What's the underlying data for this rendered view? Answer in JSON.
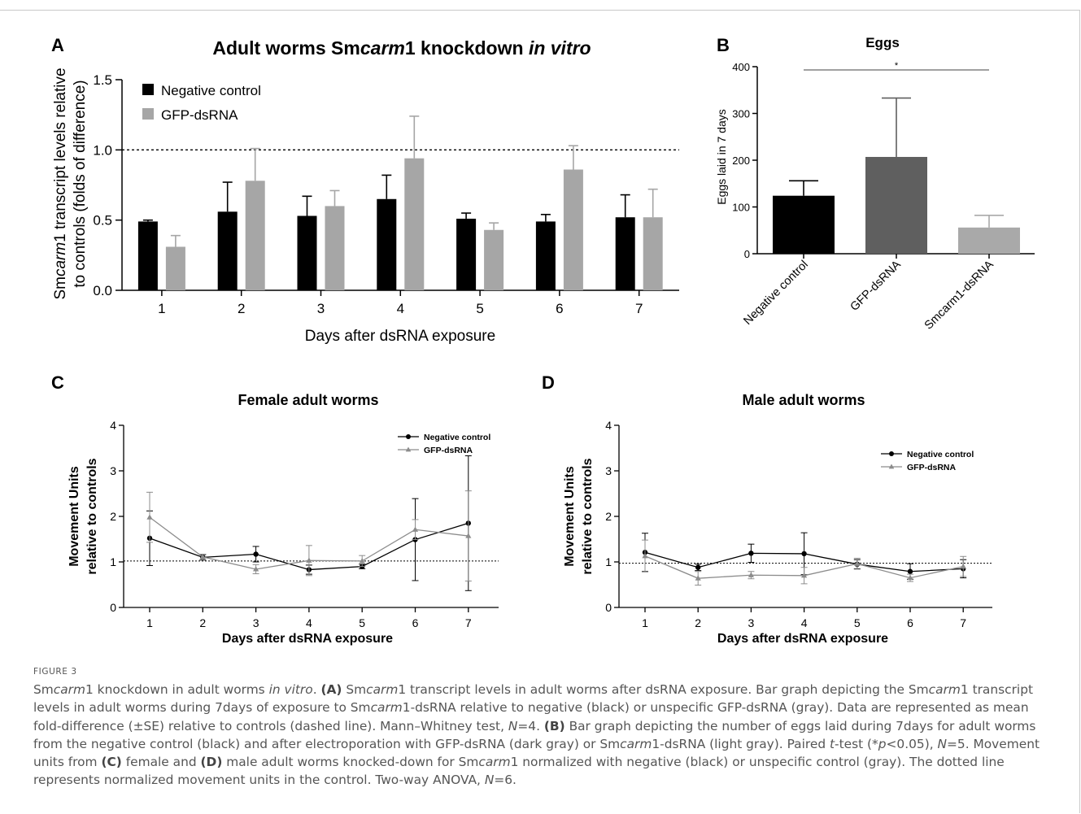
{
  "chart_data": [
    {
      "panel": "A",
      "type": "bar",
      "title_parts": [
        {
          "t": "Adult worms Sm",
          "i": false
        },
        {
          "t": "carm",
          "i": true
        },
        {
          "t": "1 knockdown ",
          "i": false
        },
        {
          "t": "in vitro",
          "i": true
        }
      ],
      "xlabel": "Days after dsRNA exposure",
      "ylabel_line1_parts": [
        {
          "t": "Sm",
          "i": false
        },
        {
          "t": "carm",
          "i": true
        },
        {
          "t": "1 transcript levels relative",
          "i": false
        }
      ],
      "ylabel_line2": "to controls (folds of difference)",
      "categories": [
        "1",
        "2",
        "3",
        "4",
        "5",
        "6",
        "7"
      ],
      "ylim": [
        0,
        1.5
      ],
      "yticks": [
        "0.0",
        "0.5",
        "1.0",
        "1.5"
      ],
      "reference_line": 1.0,
      "legend_position": "top-left",
      "series": [
        {
          "name": "Negative control",
          "color": "#000000",
          "values": [
            0.49,
            0.56,
            0.53,
            0.65,
            0.51,
            0.49,
            0.52
          ],
          "errors": [
            0.01,
            0.21,
            0.14,
            0.17,
            0.04,
            0.05,
            0.16
          ]
        },
        {
          "name": "GFP-dsRNA",
          "color": "#a6a6a6",
          "values": [
            0.31,
            0.78,
            0.6,
            0.94,
            0.43,
            0.86,
            0.52
          ],
          "errors": [
            0.08,
            0.23,
            0.11,
            0.3,
            0.05,
            0.17,
            0.2
          ]
        }
      ]
    },
    {
      "panel": "B",
      "type": "bar",
      "title": "Eggs",
      "ylabel": "Eggs laid in 7 days",
      "categories": [
        "Negative control",
        "GFP-dsRNA",
        "Smcarm1-dsRNA"
      ],
      "values": [
        124,
        207,
        56
      ],
      "errors": [
        32,
        126,
        26
      ],
      "colors": [
        "#000000",
        "#5f5f5f",
        "#a9a9a9"
      ],
      "ylim": [
        0,
        400
      ],
      "yticks": [
        "0",
        "100",
        "200",
        "300",
        "400"
      ],
      "significance": {
        "from": "Negative control",
        "to": "Smcarm1-dsRNA",
        "label": "*"
      }
    },
    {
      "panel": "C",
      "type": "line",
      "title": "Female adult worms",
      "xlabel": "Days after dsRNA exposure",
      "ylabel_line1": "Movement Units",
      "ylabel_line2": "relative to controls",
      "x": [
        "1",
        "2",
        "3",
        "4",
        "5",
        "6",
        "7"
      ],
      "ylim": [
        0,
        4
      ],
      "yticks": [
        "0",
        "1",
        "2",
        "3",
        "4"
      ],
      "reference_line": 1.02,
      "legend_position": "top-right",
      "series": [
        {
          "name": "Negative control",
          "color": "#000000",
          "marker": "circle",
          "values": [
            1.52,
            1.1,
            1.17,
            0.83,
            0.9,
            1.49,
            1.85
          ],
          "errors": [
            0.6,
            0.06,
            0.17,
            0.1,
            0.05,
            0.9,
            1.48
          ]
        },
        {
          "name": "GFP-dsRNA",
          "color": "#8c8c8c",
          "marker": "triangle",
          "values": [
            1.98,
            1.11,
            0.84,
            1.03,
            1.02,
            1.71,
            1.57
          ],
          "errors": [
            0.55,
            0.06,
            0.1,
            0.33,
            0.12,
            0.22,
            0.99
          ]
        }
      ]
    },
    {
      "panel": "D",
      "type": "line",
      "title": "Male adult worms",
      "xlabel": "Days after dsRNA exposure",
      "ylabel_line1": "Movement Units",
      "ylabel_line2": "relative to controls",
      "x": [
        "1",
        "2",
        "3",
        "4",
        "5",
        "6",
        "7"
      ],
      "ylim": [
        0,
        4
      ],
      "yticks": [
        "0",
        "1",
        "2",
        "3",
        "4"
      ],
      "reference_line": 0.97,
      "legend_position": "top-right",
      "series": [
        {
          "name": "Negative control",
          "color": "#000000",
          "marker": "circle",
          "values": [
            1.21,
            0.88,
            1.19,
            1.18,
            0.95,
            0.79,
            0.85
          ],
          "errors": [
            0.42,
            0.07,
            0.2,
            0.46,
            0.1,
            0.17,
            0.2
          ]
        },
        {
          "name": "GFP-dsRNA",
          "color": "#8c8c8c",
          "marker": "triangle",
          "values": [
            1.13,
            0.64,
            0.71,
            0.7,
            0.96,
            0.65,
            0.9
          ],
          "errors": [
            0.35,
            0.15,
            0.08,
            0.18,
            0.12,
            0.08,
            0.22
          ]
        }
      ]
    }
  ],
  "figure_label": "FIGURE 3",
  "caption": [
    {
      "t": "Sm"
    },
    {
      "t": "carm",
      "i": true
    },
    {
      "t": "1 knockdown in adult worms "
    },
    {
      "t": "in vitro",
      "i": true
    },
    {
      "t": ". "
    },
    {
      "t": "(A)",
      "b": true
    },
    {
      "t": " Sm"
    },
    {
      "t": "carm",
      "i": true
    },
    {
      "t": "1 transcript levels in adult worms after dsRNA exposure. Bar graph depicting the Sm"
    },
    {
      "t": "carm",
      "i": true
    },
    {
      "t": "1 transcript levels in adult worms during 7days of exposure to Sm"
    },
    {
      "t": "carm",
      "i": true
    },
    {
      "t": "1-dsRNA relative to negative (black) or unspecific GFP-dsRNA (gray). Data are represented as mean fold-difference (±SE) relative to controls (dashed line). Mann–Whitney test, "
    },
    {
      "t": "N",
      "i": true
    },
    {
      "t": "=4. "
    },
    {
      "t": "(B)",
      "b": true
    },
    {
      "t": " Bar graph depicting the number of eggs laid during 7days for adult worms from the negative control (black) and after electroporation with GFP-dsRNA (dark gray) or Sm"
    },
    {
      "t": "carm",
      "i": true
    },
    {
      "t": "1-dsRNA (light gray). Paired "
    },
    {
      "t": "t",
      "i": true
    },
    {
      "t": "-test (*"
    },
    {
      "t": "p",
      "i": true
    },
    {
      "t": "<0.05), "
    },
    {
      "t": "N",
      "i": true
    },
    {
      "t": "=5. Movement units from "
    },
    {
      "t": "(C)",
      "b": true
    },
    {
      "t": " female and "
    },
    {
      "t": "(D)",
      "b": true
    },
    {
      "t": " male adult worms knocked-down for Sm"
    },
    {
      "t": "carm",
      "i": true
    },
    {
      "t": "1 normalized with negative (black) or unspecific control (gray). The dotted line represents normalized movement units in the control. Two-way ANOVA, "
    },
    {
      "t": "N",
      "i": true
    },
    {
      "t": "=6."
    }
  ]
}
